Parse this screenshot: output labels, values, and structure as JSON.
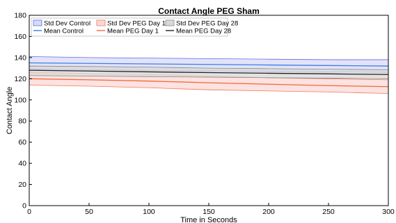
{
  "chart_data": {
    "type": "area",
    "title": "Contact Angle PEG Sham",
    "xlabel": "Time in Seconds",
    "ylabel": "Contact Angle",
    "xlim": [
      0,
      300
    ],
    "ylim": [
      0,
      180
    ],
    "xticks": [
      0,
      50,
      100,
      150,
      200,
      250,
      300
    ],
    "yticks": [
      0,
      20,
      40,
      60,
      80,
      100,
      120,
      140,
      160,
      180
    ],
    "grid": false,
    "legend_position": "top-left",
    "x": [
      0,
      50,
      100,
      150,
      200,
      250,
      300
    ],
    "bands": [
      {
        "name": "Std Dev Control",
        "upper": [
          141,
          140,
          139.5,
          139,
          138.5,
          138,
          138
        ],
        "lower": [
          129,
          128.5,
          128,
          127.5,
          127,
          126.5,
          126
        ],
        "color": "#5b6ee8",
        "fill": "#d8daf7"
      },
      {
        "name": "Std Dev PEG Day 1",
        "upper": [
          126,
          125,
          124,
          122.5,
          121,
          120,
          119
        ],
        "lower": [
          114,
          113,
          111.5,
          109.5,
          108.5,
          107.5,
          106
        ],
        "color": "#ef7a5a",
        "fill": "#fbd8d6"
      },
      {
        "name": "Std Dev PEG Day 28",
        "upper": [
          132,
          131.5,
          131,
          130,
          129.5,
          129,
          128.5
        ],
        "lower": [
          123,
          122.5,
          122,
          121.5,
          121,
          120.5,
          120
        ],
        "color": "#888888",
        "fill": "#d9d9d9"
      }
    ],
    "series": [
      {
        "name": "Mean Control",
        "values": [
          135,
          134.5,
          134,
          133.5,
          133,
          132.5,
          132
        ],
        "color": "#3d7ee0"
      },
      {
        "name": "Mean PEG Day 1",
        "values": [
          120,
          119,
          117.8,
          116.2,
          114.8,
          113.5,
          112.5
        ],
        "color": "#ef6a3a"
      },
      {
        "name": "Mean PEG Day 28",
        "values": [
          128,
          127.3,
          126.5,
          125.8,
          125.2,
          124.6,
          124
        ],
        "color": "#222222"
      }
    ]
  }
}
